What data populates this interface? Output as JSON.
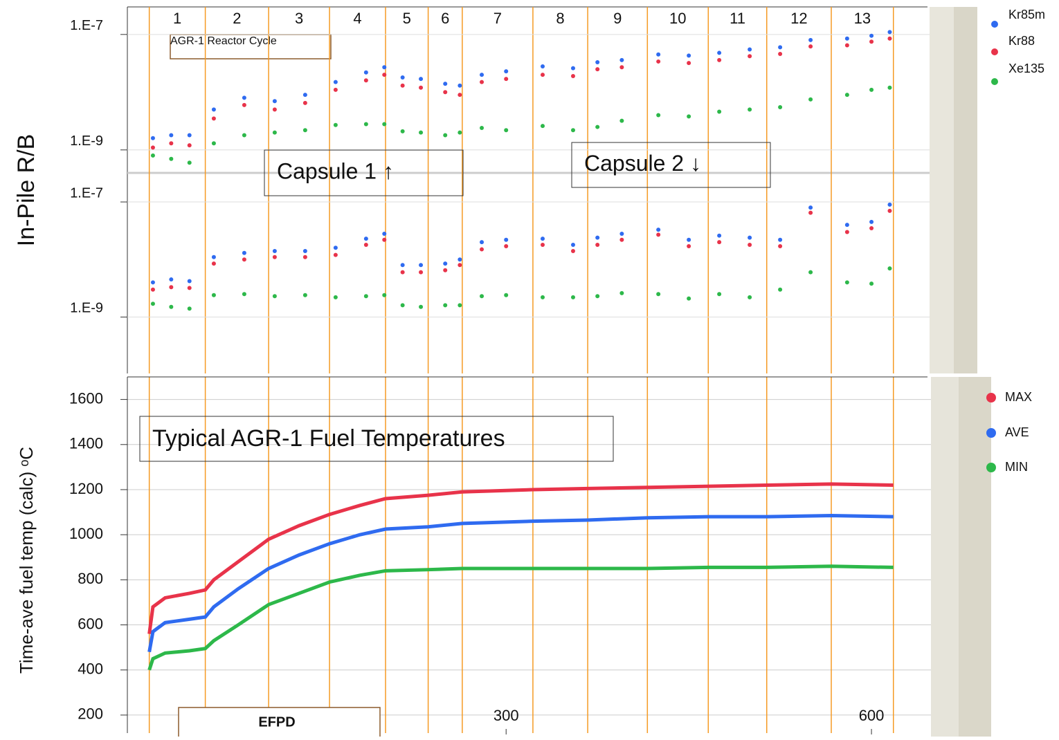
{
  "chart_data": [
    {
      "type": "scatter",
      "ylabel": "In-Pile R/B",
      "log_y": true,
      "xlim": [
        -11,
        646
      ],
      "cycle_title": "AGR-1 Reactor Cycle",
      "cycle_labels": [
        "1",
        "2",
        "3",
        "4",
        "5",
        "6",
        "7",
        "8",
        "9",
        "10",
        "11",
        "12",
        "13"
      ],
      "cycle_boundaries": [
        7,
        53,
        105,
        155,
        201,
        236,
        264,
        322,
        367,
        416,
        466,
        514,
        567,
        618
      ],
      "x": [
        10,
        25,
        40,
        60,
        85,
        110,
        135,
        160,
        185,
        200,
        215,
        230,
        250,
        262,
        280,
        300,
        330,
        355,
        375,
        395,
        425,
        450,
        475,
        500,
        525,
        550,
        580,
        600,
        615
      ],
      "legend": "upper right",
      "series": [
        {
          "name": "Kr85m",
          "color": "#2f6bf0",
          "values": [
            [
              1.6e-09,
              1.8e-09,
              1.8e-09,
              5e-09,
              8e-09,
              7e-09,
              9e-09,
              1.5e-08,
              2.2e-08,
              2.7e-08,
              1.8e-08,
              1.7e-08,
              1.4e-08,
              1.3e-08,
              2e-08,
              2.3e-08,
              2.8e-08,
              2.6e-08,
              3.3e-08,
              3.6e-08,
              4.5e-08,
              4.3e-08,
              4.8e-08,
              5.5e-08,
              6e-08,
              8e-08,
              8.5e-08,
              9.5e-08,
              1.1e-07
            ],
            [
              4e-09,
              4.5e-09,
              4.2e-09,
              1.1e-08,
              1.3e-08,
              1.4e-08,
              1.4e-08,
              1.6e-08,
              2.3e-08,
              2.8e-08,
              8e-09,
              8e-09,
              8.5e-09,
              1e-08,
              2e-08,
              2.2e-08,
              2.3e-08,
              1.8e-08,
              2.4e-08,
              2.8e-08,
              3.3e-08,
              2.2e-08,
              2.6e-08,
              2.4e-08,
              2.2e-08,
              8e-08,
              4e-08,
              4.5e-08,
              9e-08
            ]
          ]
        },
        {
          "name": "Kr88",
          "color": "#e8334a",
          "values": [
            [
              1.1e-09,
              1.3e-09,
              1.2e-09,
              3.5e-09,
              6e-09,
              5e-09,
              6.5e-09,
              1.1e-08,
              1.6e-08,
              2e-08,
              1.3e-08,
              1.2e-08,
              1e-08,
              9e-09,
              1.5e-08,
              1.7e-08,
              2e-08,
              1.9e-08,
              2.5e-08,
              2.7e-08,
              3.4e-08,
              3.2e-08,
              3.6e-08,
              4.2e-08,
              4.6e-08,
              6.2e-08,
              6.5e-08,
              7.5e-08,
              8.5e-08
            ],
            [
              3e-09,
              3.3e-09,
              3.2e-09,
              8.5e-09,
              1e-08,
              1.1e-08,
              1.1e-08,
              1.2e-08,
              1.8e-08,
              2.2e-08,
              6e-09,
              6e-09,
              6.5e-09,
              8e-09,
              1.5e-08,
              1.7e-08,
              1.8e-08,
              1.4e-08,
              1.8e-08,
              2.2e-08,
              2.7e-08,
              1.7e-08,
              2e-08,
              1.8e-08,
              1.7e-08,
              6.5e-08,
              3e-08,
              3.5e-08,
              7e-08
            ]
          ]
        },
        {
          "name": "Xe135",
          "color": "#2db84a",
          "values": [
            [
              8e-10,
              7e-10,
              6e-10,
              1.3e-09,
              1.8e-09,
              2e-09,
              2.2e-09,
              2.7e-09,
              2.8e-09,
              2.8e-09,
              2.1e-09,
              2e-09,
              1.8e-09,
              2e-09,
              2.4e-09,
              2.2e-09,
              2.6e-09,
              2.2e-09,
              2.5e-09,
              3.2e-09,
              4e-09,
              3.8e-09,
              4.6e-09,
              5e-09,
              5.5e-09,
              7.5e-09,
              9e-09,
              1.1e-08,
              1.2e-08
            ],
            [
              1.7e-09,
              1.5e-09,
              1.4e-09,
              2.4e-09,
              2.5e-09,
              2.3e-09,
              2.4e-09,
              2.2e-09,
              2.3e-09,
              2.4e-09,
              1.6e-09,
              1.5e-09,
              1.6e-09,
              1.6e-09,
              2.3e-09,
              2.4e-09,
              2.2e-09,
              2.2e-09,
              2.3e-09,
              2.6e-09,
              2.5e-09,
              2.1e-09,
              2.5e-09,
              2.2e-09,
              3e-09,
              6e-09,
              4e-09,
              3.8e-09,
              7e-09
            ]
          ]
        }
      ],
      "panels": [
        {
          "annotation": "Capsule 1  ↑",
          "ylim": [
            4e-10,
            3e-07
          ],
          "yticks": [
            {
              "value": 1e-07,
              "label": "1.E-7"
            },
            {
              "value": 1e-09,
              "label": "1.E-9"
            }
          ]
        },
        {
          "annotation": "Capsule 2  ↓",
          "ylim": [
            1.2e-10,
            3.2e-07
          ],
          "yticks": [
            {
              "value": 1e-07,
              "label": "1.E-7"
            },
            {
              "value": 1e-09,
              "label": "1.E-9"
            }
          ]
        }
      ]
    },
    {
      "type": "line",
      "title": "Typical AGR-1 Fuel Temperatures",
      "ylabel": "Time-ave fuel temp (calc) ᵒC",
      "xlabel": "EFPD",
      "xlim": [
        -11,
        646
      ],
      "ylim": [
        120,
        1700
      ],
      "yticks": [
        200,
        400,
        600,
        800,
        1000,
        1200,
        1400,
        1600
      ],
      "xticks": [
        300,
        600
      ],
      "grid": true,
      "x": [
        7,
        10,
        20,
        40,
        53,
        60,
        80,
        105,
        130,
        155,
        180,
        201,
        236,
        264,
        322,
        367,
        416,
        466,
        514,
        567,
        618
      ],
      "series": [
        {
          "name": "MAX",
          "color": "#e8334a",
          "values": [
            560,
            680,
            720,
            740,
            755,
            800,
            880,
            980,
            1040,
            1090,
            1130,
            1160,
            1175,
            1190,
            1200,
            1205,
            1210,
            1215,
            1220,
            1225,
            1220
          ]
        },
        {
          "name": "AVE",
          "color": "#2f6bf0",
          "values": [
            480,
            570,
            610,
            625,
            635,
            680,
            760,
            850,
            910,
            960,
            1000,
            1025,
            1035,
            1050,
            1060,
            1065,
            1075,
            1080,
            1080,
            1085,
            1080
          ]
        },
        {
          "name": "MIN",
          "color": "#2db84a",
          "values": [
            400,
            450,
            475,
            485,
            495,
            530,
            600,
            690,
            740,
            790,
            820,
            840,
            845,
            850,
            850,
            850,
            850,
            855,
            855,
            860,
            855
          ]
        }
      ]
    }
  ]
}
